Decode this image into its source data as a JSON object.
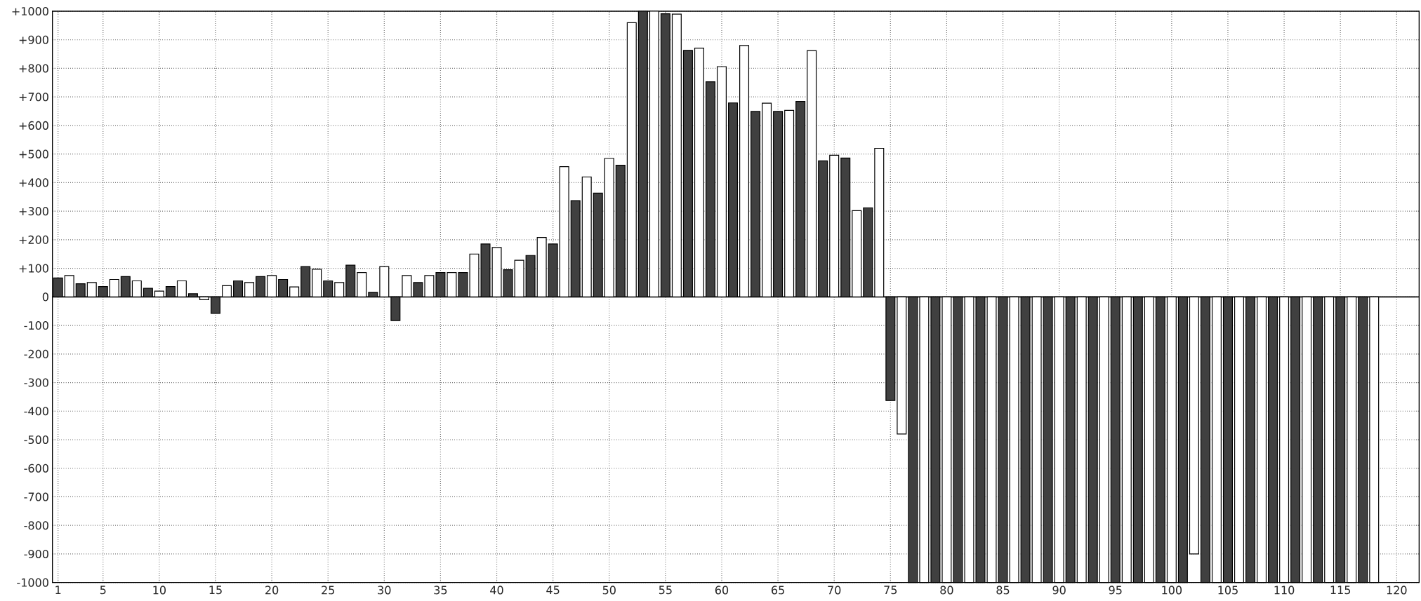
{
  "chart_data": {
    "type": "bar",
    "x": [
      1,
      2,
      3,
      4,
      5,
      6,
      7,
      8,
      9,
      10,
      11,
      12,
      13,
      14,
      15,
      16,
      17,
      18,
      19,
      20,
      21,
      22,
      23,
      24,
      25,
      26,
      27,
      28,
      29,
      30,
      31,
      32,
      33,
      34,
      35,
      36,
      37,
      38,
      39,
      40,
      41,
      42,
      43,
      44,
      45,
      46,
      47,
      48,
      49,
      50,
      51,
      52,
      53,
      54,
      55,
      56,
      57,
      58,
      59,
      60,
      61,
      62,
      63,
      64,
      65,
      66,
      67,
      68,
      69,
      70,
      71,
      72,
      73,
      74,
      75,
      76,
      77,
      78,
      79,
      80,
      81,
      82,
      83,
      84,
      85,
      86,
      87,
      88,
      89,
      90,
      91,
      92,
      93,
      94,
      95,
      96,
      97,
      98,
      99,
      100,
      101,
      102,
      103,
      104,
      105,
      106,
      107,
      108,
      109,
      110,
      111,
      112,
      113,
      114,
      115,
      116,
      117,
      118
    ],
    "values": [
      66,
      75,
      46,
      50,
      36,
      61,
      71,
      56,
      30,
      20,
      36,
      56,
      11,
      -10,
      -58,
      39,
      56,
      50,
      71,
      75,
      61,
      35,
      106,
      97,
      56,
      50,
      111,
      85,
      16,
      106,
      -83,
      75,
      50,
      75,
      85,
      85,
      85,
      150,
      185,
      173,
      95,
      128,
      145,
      208,
      185,
      456,
      337,
      420,
      363,
      485,
      461,
      960,
      1000,
      1000,
      991,
      990,
      863,
      871,
      753,
      806,
      679,
      880,
      649,
      678,
      649,
      653,
      684,
      862,
      476,
      496,
      486,
      302,
      312,
      520,
      -363,
      -480,
      -1000,
      -1000,
      -1000,
      -1000,
      -1000,
      -1000,
      -1000,
      -1000,
      -1000,
      -1000,
      -1000,
      -1000,
      -1000,
      -1000,
      -1000,
      -1000,
      -1000,
      -1000,
      -1000,
      -1000,
      -1000,
      -1000,
      -1000,
      -1000,
      -1000,
      -900,
      -1000,
      -1000,
      -1000,
      -1000,
      -1000,
      -1000,
      -1000,
      -1000,
      -1000,
      -1000,
      -1000,
      -1000,
      -1000,
      -1000,
      -1000,
      -1000
    ],
    "colors": [
      "#404040",
      "#ffffff",
      "#404040",
      "#ffffff",
      "#404040",
      "#ffffff",
      "#404040",
      "#ffffff",
      "#404040",
      "#ffffff",
      "#404040",
      "#ffffff",
      "#404040",
      "#ffffff",
      "#404040",
      "#ffffff",
      "#404040",
      "#ffffff",
      "#404040",
      "#ffffff",
      "#404040",
      "#ffffff",
      "#404040",
      "#ffffff",
      "#404040",
      "#ffffff",
      "#404040",
      "#ffffff",
      "#404040",
      "#ffffff",
      "#404040",
      "#ffffff",
      "#404040",
      "#ffffff",
      "#404040",
      "#ffffff",
      "#404040",
      "#ffffff",
      "#404040",
      "#ffffff",
      "#404040",
      "#ffffff",
      "#404040",
      "#ffffff",
      "#404040",
      "#ffffff",
      "#404040",
      "#ffffff",
      "#404040",
      "#ffffff",
      "#404040",
      "#ffffff",
      "#404040",
      "#ffffff",
      "#404040",
      "#ffffff",
      "#404040",
      "#ffffff",
      "#404040",
      "#ffffff",
      "#404040",
      "#ffffff",
      "#404040",
      "#ffffff",
      "#404040",
      "#ffffff",
      "#404040",
      "#ffffff",
      "#404040",
      "#ffffff",
      "#404040",
      "#ffffff",
      "#404040",
      "#ffffff",
      "#404040",
      "#ffffff",
      "#404040",
      "#ffffff",
      "#404040",
      "#ffffff",
      "#404040",
      "#ffffff",
      "#404040",
      "#ffffff",
      "#404040",
      "#ffffff",
      "#404040",
      "#ffffff",
      "#404040",
      "#ffffff",
      "#404040",
      "#ffffff",
      "#404040",
      "#ffffff",
      "#404040",
      "#ffffff",
      "#404040",
      "#ffffff",
      "#404040",
      "#ffffff",
      "#404040",
      "#ffffff",
      "#404040",
      "#ffffff",
      "#404040",
      "#ffffff",
      "#404040",
      "#ffffff",
      "#404040",
      "#ffffff",
      "#404040",
      "#ffffff",
      "#404040",
      "#ffffff",
      "#404040",
      "#ffffff",
      "#404040",
      "#ffffff"
    ],
    "xlim": [
      0.5,
      122
    ],
    "xticks": [
      1,
      5,
      10,
      15,
      20,
      25,
      30,
      35,
      40,
      45,
      50,
      55,
      60,
      65,
      70,
      75,
      80,
      85,
      90,
      95,
      100,
      105,
      110,
      115,
      120
    ],
    "ylim": [
      -1000,
      1000
    ],
    "yticks": [
      {
        "value": -1000,
        "label": "-1000"
      },
      {
        "value": -900,
        "label": "-900"
      },
      {
        "value": -800,
        "label": "-800"
      },
      {
        "value": -700,
        "label": "-700"
      },
      {
        "value": -600,
        "label": "-600"
      },
      {
        "value": -500,
        "label": "-500"
      },
      {
        "value": -400,
        "label": "-400"
      },
      {
        "value": -300,
        "label": "-300"
      },
      {
        "value": -200,
        "label": "-200"
      },
      {
        "value": -100,
        "label": "-100"
      },
      0,
      {
        "value": 100,
        "label": "+100"
      },
      {
        "value": 200,
        "label": "+200"
      },
      {
        "value": 300,
        "label": "+300"
      },
      {
        "value": 400,
        "label": "+400"
      },
      {
        "value": 500,
        "label": "+500"
      },
      {
        "value": 600,
        "label": "+600"
      },
      {
        "value": 700,
        "label": "+700"
      },
      {
        "value": 800,
        "label": "+800"
      },
      {
        "value": 900,
        "label": "+900"
      },
      {
        "value": 1000,
        "label": "+1000"
      }
    ],
    "grid": true
  }
}
